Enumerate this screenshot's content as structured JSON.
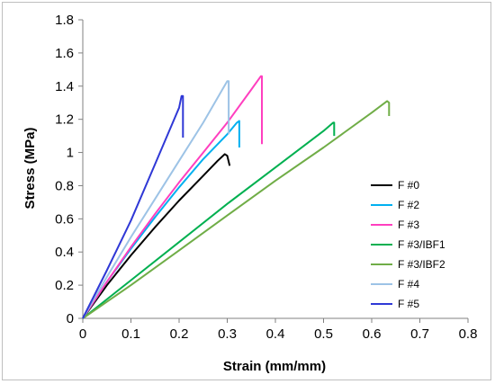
{
  "chart_data": {
    "type": "line",
    "xlabel": "Strain (mm/mm)",
    "ylabel": "Stress (MPa)",
    "xlim": [
      0,
      0.8
    ],
    "ylim": [
      0,
      1.8
    ],
    "x_ticks": [
      0,
      0.1,
      0.2,
      0.3,
      0.4,
      0.5,
      0.6,
      0.7,
      0.8
    ],
    "y_ticks": [
      0,
      0.2,
      0.4,
      0.6,
      0.8,
      1,
      1.2,
      1.4,
      1.6,
      1.8
    ],
    "x_tick_labels": [
      "0",
      "0.1",
      "0.2",
      "0.3",
      "0.4",
      "0.5",
      "0.6",
      "0.7",
      "0.8"
    ],
    "y_tick_labels": [
      "0",
      "0.2",
      "0.4",
      "0.6",
      "0.8",
      "1",
      "1.2",
      "1.4",
      "1.6",
      "1.8"
    ],
    "grid": false,
    "legend_position": "right",
    "series": [
      {
        "name": "F #0",
        "color": "#000000",
        "points": [
          [
            0,
            0
          ],
          [
            0.05,
            0.2
          ],
          [
            0.1,
            0.38
          ],
          [
            0.15,
            0.55
          ],
          [
            0.2,
            0.71
          ],
          [
            0.25,
            0.86
          ],
          [
            0.28,
            0.95
          ],
          [
            0.295,
            0.99
          ],
          [
            0.3,
            0.98
          ],
          [
            0.305,
            0.92
          ]
        ]
      },
      {
        "name": "F #2",
        "color": "#00b0f0",
        "points": [
          [
            0,
            0
          ],
          [
            0.05,
            0.22
          ],
          [
            0.1,
            0.42
          ],
          [
            0.15,
            0.61
          ],
          [
            0.2,
            0.79
          ],
          [
            0.25,
            0.96
          ],
          [
            0.3,
            1.11
          ],
          [
            0.32,
            1.18
          ],
          [
            0.325,
            1.19
          ],
          [
            0.325,
            1.03
          ]
        ]
      },
      {
        "name": "F #3",
        "color": "#ff3fbf",
        "points": [
          [
            0,
            0
          ],
          [
            0.05,
            0.22
          ],
          [
            0.1,
            0.43
          ],
          [
            0.15,
            0.63
          ],
          [
            0.2,
            0.82
          ],
          [
            0.25,
            1.0
          ],
          [
            0.3,
            1.18
          ],
          [
            0.35,
            1.38
          ],
          [
            0.37,
            1.46
          ],
          [
            0.372,
            1.46
          ],
          [
            0.372,
            1.05
          ]
        ]
      },
      {
        "name": "F #3/IBF1",
        "color": "#00b050",
        "points": [
          [
            0,
            0
          ],
          [
            0.1,
            0.23
          ],
          [
            0.2,
            0.46
          ],
          [
            0.3,
            0.69
          ],
          [
            0.4,
            0.91
          ],
          [
            0.5,
            1.13
          ],
          [
            0.52,
            1.18
          ],
          [
            0.522,
            1.18
          ],
          [
            0.522,
            1.1
          ]
        ]
      },
      {
        "name": "F #3/IBF2",
        "color": "#70ad47",
        "points": [
          [
            0,
            0
          ],
          [
            0.1,
            0.2
          ],
          [
            0.2,
            0.41
          ],
          [
            0.3,
            0.62
          ],
          [
            0.4,
            0.83
          ],
          [
            0.5,
            1.03
          ],
          [
            0.6,
            1.24
          ],
          [
            0.632,
            1.31
          ],
          [
            0.636,
            1.3
          ],
          [
            0.636,
            1.22
          ]
        ]
      },
      {
        "name": "F #4",
        "color": "#9dc3e6",
        "points": [
          [
            0,
            0
          ],
          [
            0.05,
            0.25
          ],
          [
            0.1,
            0.49
          ],
          [
            0.15,
            0.72
          ],
          [
            0.2,
            0.95
          ],
          [
            0.25,
            1.18
          ],
          [
            0.29,
            1.38
          ],
          [
            0.3,
            1.43
          ],
          [
            0.303,
            1.43
          ],
          [
            0.303,
            1.11
          ]
        ]
      },
      {
        "name": "F #5",
        "color": "#2f38d6",
        "points": [
          [
            0,
            0
          ],
          [
            0.05,
            0.29
          ],
          [
            0.1,
            0.59
          ],
          [
            0.15,
            0.93
          ],
          [
            0.2,
            1.27
          ],
          [
            0.205,
            1.34
          ],
          [
            0.208,
            1.34
          ],
          [
            0.208,
            1.09
          ]
        ]
      }
    ]
  }
}
